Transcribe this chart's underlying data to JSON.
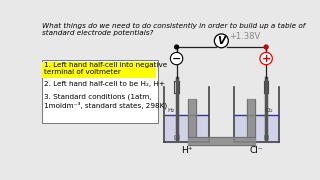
{
  "title_text": "What things do we need to do consistently in order to build up a table of\nstandard electrode potentials?",
  "point1_highlighted": "1. Left hand half-cell into negative\nterminal of voltmeter",
  "point2": "2. Left hand half-cell to be H₂, H+",
  "point3": "3. Standard conditions (1atm,\n1moldm⁻³, standard states, 298K)",
  "voltage": "+1.38V",
  "left_label": "H⁺",
  "right_label": "Cl⁻",
  "left_gas": "H₂",
  "right_gas": "Cl₂",
  "bg_color": "#e8e8e8",
  "highlight_color": "#ffff00",
  "box_bg": "#ffffff",
  "text_color": "#000000",
  "minus_color": "#000000",
  "plus_color": "#cc0000",
  "wire_color": "#222222",
  "liquid_color": "#3333bb",
  "liquid_fill": "#c8c8e8",
  "electrode_color": "#555555",
  "beaker_color": "#444444",
  "salt_color": "#888888",
  "tube_gray": "#999999"
}
